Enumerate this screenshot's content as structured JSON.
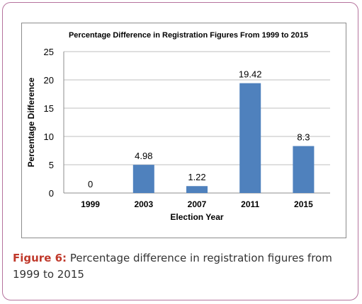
{
  "chart_data": {
    "type": "bar",
    "title": "Percentage Difference in Registration Figures From 1999 to 2015",
    "xlabel": "Election Year",
    "ylabel": "Percentage Difference",
    "categories": [
      "1999",
      "2003",
      "2007",
      "2011",
      "2015"
    ],
    "values": [
      0,
      4.98,
      1.22,
      19.42,
      8.3
    ],
    "data_labels": [
      "0",
      "4.98",
      "1.22",
      "19.42",
      "8.3"
    ],
    "ylim": [
      0,
      25
    ],
    "yticks": [
      0,
      5,
      10,
      15,
      20,
      25
    ],
    "ytick_labels": [
      "0",
      "5",
      "10",
      "15",
      "20",
      "25"
    ],
    "grid": "horizontal",
    "bar_color": "#4f81bd",
    "legend": "none"
  },
  "caption": {
    "label": "Figure 6:",
    "text": " Percentage difference in registration figures from 1999 to 2015"
  },
  "colors": {
    "frame_border": "#b5739d",
    "caption_label": "#c0392b"
  }
}
